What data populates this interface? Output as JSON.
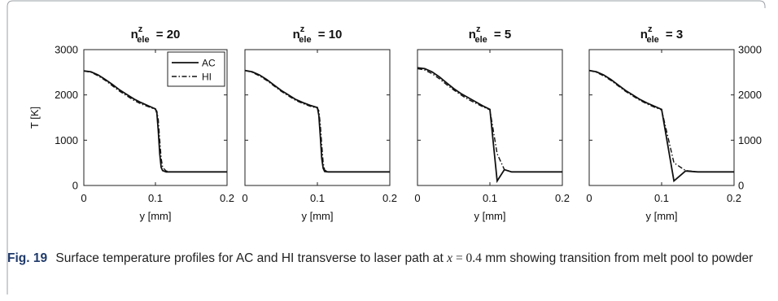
{
  "caption": {
    "label": "Fig. 19",
    "text_before": "Surface temperature profiles for AC and HI transverse to laser path at",
    "math_var": "x",
    "math_eq": " = 0.4",
    "text_after": "mm showing transition from melt pool to powder"
  },
  "chart_data": [
    {
      "type": "line",
      "title": {
        "base": "n",
        "sup": "z",
        "sub": "ele",
        "value": "= 20"
      },
      "xlabel": "y [mm]",
      "ylabel": "T [K]",
      "xlim": [
        0,
        0.2
      ],
      "ylim": [
        0,
        3000
      ],
      "xticks": [
        "0",
        "0.1",
        "0.2"
      ],
      "yticks_left": [
        "0",
        "1000",
        "2000",
        "3000"
      ],
      "yticks_right": [],
      "legend": {
        "placement": "top-right",
        "entries": [
          "AC",
          "HI"
        ]
      },
      "grid": false,
      "series": [
        {
          "name": "AC",
          "style": "solid",
          "x": [
            0,
            0.01,
            0.02,
            0.03,
            0.04,
            0.05,
            0.06,
            0.07,
            0.08,
            0.09,
            0.1,
            0.102,
            0.104,
            0.106,
            0.108,
            0.11,
            0.115,
            0.12,
            0.2
          ],
          "y": [
            2530,
            2510,
            2440,
            2340,
            2230,
            2110,
            2010,
            1910,
            1830,
            1760,
            1690,
            1600,
            1200,
            700,
            400,
            330,
            300,
            300,
            300
          ]
        },
        {
          "name": "HI",
          "style": "dashdot",
          "x": [
            0,
            0.01,
            0.02,
            0.03,
            0.04,
            0.05,
            0.06,
            0.07,
            0.08,
            0.09,
            0.1,
            0.102,
            0.104,
            0.106,
            0.108,
            0.11,
            0.115,
            0.12,
            0.2
          ],
          "y": [
            2530,
            2500,
            2420,
            2320,
            2200,
            2080,
            1980,
            1880,
            1800,
            1740,
            1680,
            1640,
            1450,
            1000,
            600,
            400,
            320,
            300,
            300
          ]
        }
      ]
    },
    {
      "type": "line",
      "title": {
        "base": "n",
        "sup": "z",
        "sub": "ele",
        "value": "= 10"
      },
      "xlabel": "y [mm]",
      "ylabel": "",
      "xlim": [
        0,
        0.2
      ],
      "ylim": [
        0,
        3000
      ],
      "xticks": [
        "0",
        "0.1",
        "0.2"
      ],
      "yticks_left": [],
      "yticks_right": [],
      "legend": null,
      "grid": false,
      "series": [
        {
          "name": "AC",
          "style": "solid",
          "x": [
            0,
            0.01,
            0.02,
            0.03,
            0.04,
            0.05,
            0.06,
            0.07,
            0.08,
            0.09,
            0.1,
            0.102,
            0.104,
            0.106,
            0.108,
            0.11,
            0.115,
            0.2
          ],
          "y": [
            2540,
            2510,
            2440,
            2340,
            2220,
            2100,
            2000,
            1900,
            1830,
            1770,
            1720,
            1550,
            1100,
            600,
            380,
            310,
            300,
            300
          ]
        },
        {
          "name": "HI",
          "style": "dashdot",
          "x": [
            0,
            0.01,
            0.02,
            0.03,
            0.04,
            0.05,
            0.06,
            0.07,
            0.08,
            0.09,
            0.1,
            0.102,
            0.104,
            0.106,
            0.108,
            0.11,
            0.115,
            0.2
          ],
          "y": [
            2540,
            2500,
            2420,
            2320,
            2200,
            2080,
            1980,
            1880,
            1810,
            1750,
            1710,
            1650,
            1350,
            900,
            500,
            340,
            300,
            300
          ]
        }
      ]
    },
    {
      "type": "line",
      "title": {
        "base": "n",
        "sup": "z",
        "sub": "ele",
        "value": "= 5"
      },
      "xlabel": "y [mm]",
      "ylabel": "",
      "xlim": [
        0,
        0.2
      ],
      "ylim": [
        0,
        3000
      ],
      "xticks": [
        "0",
        "0.1",
        "0.2"
      ],
      "yticks_left": [],
      "yticks_right": [],
      "legend": null,
      "grid": false,
      "series": [
        {
          "name": "AC",
          "style": "solid",
          "x": [
            0,
            0.01,
            0.02,
            0.03,
            0.04,
            0.05,
            0.06,
            0.07,
            0.08,
            0.09,
            0.1,
            0.11,
            0.12,
            0.13,
            0.2
          ],
          "y": [
            2600,
            2580,
            2510,
            2400,
            2270,
            2140,
            2030,
            1940,
            1850,
            1760,
            1680,
            100,
            350,
            300,
            300
          ]
        },
        {
          "name": "HI",
          "style": "dashdot",
          "x": [
            0,
            0.01,
            0.02,
            0.03,
            0.04,
            0.05,
            0.06,
            0.07,
            0.08,
            0.09,
            0.1,
            0.11,
            0.12,
            0.13,
            0.2
          ],
          "y": [
            2580,
            2550,
            2470,
            2360,
            2230,
            2110,
            2000,
            1900,
            1820,
            1740,
            1670,
            700,
            350,
            300,
            300
          ]
        }
      ]
    },
    {
      "type": "line",
      "title": {
        "base": "n",
        "sup": "z",
        "sub": "ele",
        "value": "= 3"
      },
      "xlabel": "y [mm]",
      "ylabel": "",
      "xlim": [
        0,
        0.2
      ],
      "ylim": [
        0,
        3000
      ],
      "xticks": [
        "0",
        "0.1",
        "0.2"
      ],
      "yticks_left": [],
      "yticks_right": [
        "0",
        "1000",
        "2000",
        "3000"
      ],
      "legend": null,
      "grid": false,
      "series": [
        {
          "name": "AC",
          "style": "solid",
          "x": [
            0,
            0.01,
            0.02,
            0.03,
            0.04,
            0.05,
            0.06,
            0.07,
            0.08,
            0.09,
            0.1,
            0.117,
            0.133,
            0.15,
            0.2
          ],
          "y": [
            2540,
            2510,
            2440,
            2340,
            2220,
            2100,
            2000,
            1900,
            1820,
            1750,
            1680,
            100,
            320,
            300,
            300
          ]
        },
        {
          "name": "HI",
          "style": "dashdot",
          "x": [
            0,
            0.01,
            0.02,
            0.03,
            0.04,
            0.05,
            0.06,
            0.07,
            0.08,
            0.09,
            0.1,
            0.117,
            0.133,
            0.15,
            0.2
          ],
          "y": [
            2540,
            2500,
            2420,
            2320,
            2200,
            2080,
            1980,
            1880,
            1800,
            1730,
            1670,
            500,
            330,
            300,
            300
          ]
        }
      ]
    }
  ]
}
